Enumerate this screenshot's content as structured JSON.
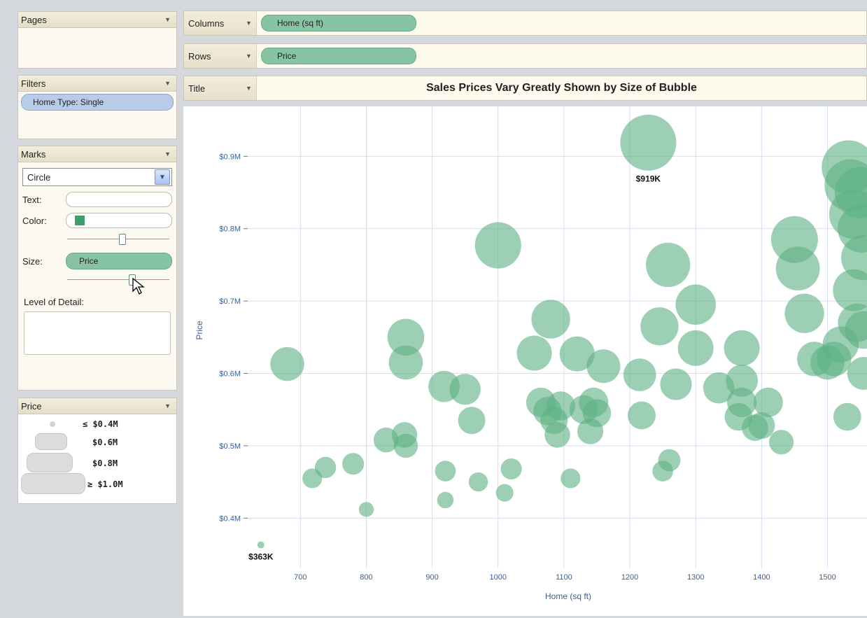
{
  "panels": {
    "pages": {
      "title": "Pages"
    },
    "filters": {
      "title": "Filters",
      "pill": "Home Type: Single"
    },
    "marks": {
      "title": "Marks",
      "mark_type": "Circle",
      "text_label": "Text:",
      "color_label": "Color:",
      "color_swatch": "#3f9e6a",
      "size_label": "Size:",
      "size_field": "Price",
      "detail_label": "Level of Detail:"
    },
    "size_legend": {
      "title": "Price",
      "items": [
        "≤ $0.4M",
        "$0.6M",
        "$0.8M",
        "≥ $1.0M"
      ]
    }
  },
  "shelves": {
    "columns": {
      "label": "Columns",
      "field": "Home (sq ft)"
    },
    "rows": {
      "label": "Rows",
      "field": "Price"
    },
    "title": {
      "label": "Title",
      "value": "Sales Prices Vary Greatly Shown by Size of Bubble"
    }
  },
  "colors": {
    "bubble": "#5fb184",
    "bubble_dark": "#3f9a66",
    "grid": "#d6def2",
    "axis_text": "#3a5f93"
  },
  "chart_data": {
    "type": "scatter",
    "title": "Sales Prices Vary Greatly Shown by Size of Bubble",
    "xlabel": "Home (sq ft)",
    "ylabel": "Price",
    "xlim": [
      620,
      1560
    ],
    "ylim": [
      0.35,
      0.94
    ],
    "x_ticks": [
      700,
      800,
      900,
      1000,
      1100,
      1200,
      1300,
      1400,
      1500
    ],
    "x_tick_labels": [
      "700",
      "800",
      "900",
      "1000",
      "1100",
      "1200",
      "1300",
      "1400",
      "1500"
    ],
    "y_ticks": [
      0.4,
      0.5,
      0.6,
      0.7,
      0.8,
      0.9
    ],
    "y_tick_labels": [
      "$0.4M",
      "$0.5M",
      "$0.6M",
      "$0.7M",
      "$0.8M",
      "$0.9M"
    ],
    "grid": true,
    "size_encoding": "Price",
    "annotations": [
      {
        "text": "$919K",
        "x": 1228,
        "y": 0.919
      },
      {
        "text": "$363K",
        "x": 640,
        "y": 0.363
      }
    ],
    "points": [
      {
        "x": 640,
        "y": 0.363
      },
      {
        "x": 680,
        "y": 0.613
      },
      {
        "x": 718,
        "y": 0.455
      },
      {
        "x": 738,
        "y": 0.47
      },
      {
        "x": 780,
        "y": 0.475
      },
      {
        "x": 800,
        "y": 0.412
      },
      {
        "x": 830,
        "y": 0.508
      },
      {
        "x": 858,
        "y": 0.515
      },
      {
        "x": 860,
        "y": 0.5
      },
      {
        "x": 860,
        "y": 0.65
      },
      {
        "x": 860,
        "y": 0.615
      },
      {
        "x": 918,
        "y": 0.582
      },
      {
        "x": 920,
        "y": 0.465
      },
      {
        "x": 920,
        "y": 0.425
      },
      {
        "x": 950,
        "y": 0.578
      },
      {
        "x": 960,
        "y": 0.535
      },
      {
        "x": 970,
        "y": 0.45
      },
      {
        "x": 1000,
        "y": 0.777
      },
      {
        "x": 1010,
        "y": 0.435
      },
      {
        "x": 1020,
        "y": 0.468
      },
      {
        "x": 1055,
        "y": 0.628
      },
      {
        "x": 1065,
        "y": 0.56
      },
      {
        "x": 1075,
        "y": 0.548
      },
      {
        "x": 1080,
        "y": 0.675
      },
      {
        "x": 1085,
        "y": 0.535
      },
      {
        "x": 1090,
        "y": 0.515
      },
      {
        "x": 1095,
        "y": 0.555
      },
      {
        "x": 1110,
        "y": 0.455
      },
      {
        "x": 1120,
        "y": 0.627
      },
      {
        "x": 1130,
        "y": 0.55
      },
      {
        "x": 1140,
        "y": 0.52
      },
      {
        "x": 1145,
        "y": 0.56
      },
      {
        "x": 1150,
        "y": 0.545
      },
      {
        "x": 1160,
        "y": 0.61
      },
      {
        "x": 1215,
        "y": 0.598
      },
      {
        "x": 1218,
        "y": 0.542
      },
      {
        "x": 1228,
        "y": 0.919
      },
      {
        "x": 1245,
        "y": 0.665
      },
      {
        "x": 1250,
        "y": 0.465
      },
      {
        "x": 1258,
        "y": 0.75
      },
      {
        "x": 1260,
        "y": 0.48
      },
      {
        "x": 1270,
        "y": 0.585
      },
      {
        "x": 1300,
        "y": 0.695
      },
      {
        "x": 1300,
        "y": 0.635
      },
      {
        "x": 1335,
        "y": 0.58
      },
      {
        "x": 1365,
        "y": 0.54
      },
      {
        "x": 1370,
        "y": 0.56
      },
      {
        "x": 1370,
        "y": 0.635
      },
      {
        "x": 1370,
        "y": 0.59
      },
      {
        "x": 1390,
        "y": 0.525
      },
      {
        "x": 1400,
        "y": 0.528
      },
      {
        "x": 1410,
        "y": 0.56
      },
      {
        "x": 1430,
        "y": 0.505
      },
      {
        "x": 1450,
        "y": 0.785
      },
      {
        "x": 1455,
        "y": 0.745
      },
      {
        "x": 1465,
        "y": 0.683
      },
      {
        "x": 1480,
        "y": 0.62
      },
      {
        "x": 1500,
        "y": 0.615
      },
      {
        "x": 1510,
        "y": 0.62
      },
      {
        "x": 1520,
        "y": 0.64
      },
      {
        "x": 1530,
        "y": 0.54
      },
      {
        "x": 1532,
        "y": 0.885
      },
      {
        "x": 1535,
        "y": 0.86
      },
      {
        "x": 1540,
        "y": 0.82
      },
      {
        "x": 1540,
        "y": 0.715
      },
      {
        "x": 1545,
        "y": 0.67
      },
      {
        "x": 1550,
        "y": 0.85
      },
      {
        "x": 1552,
        "y": 0.8
      },
      {
        "x": 1555,
        "y": 0.76
      },
      {
        "x": 1555,
        "y": 0.66
      },
      {
        "x": 1555,
        "y": 0.6
      }
    ]
  }
}
